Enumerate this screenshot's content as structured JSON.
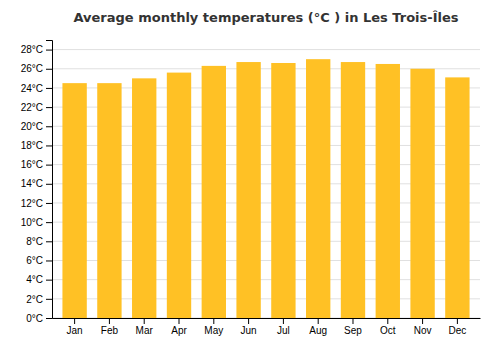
{
  "chart_data": {
    "type": "bar",
    "title": "Average monthly temperatures (°C ) in Les Trois-Îles",
    "categories": [
      "Jan",
      "Feb",
      "Mar",
      "Apr",
      "May",
      "Jun",
      "Jul",
      "Aug",
      "Sep",
      "Oct",
      "Nov",
      "Dec"
    ],
    "values": [
      24.5,
      24.5,
      25.0,
      25.6,
      26.3,
      26.7,
      26.6,
      27.0,
      26.7,
      26.5,
      26.0,
      25.1
    ],
    "color": "#FFC125",
    "ylim": [
      0,
      29
    ],
    "yticks": [
      {
        "value": 0,
        "label": "0°C"
      },
      {
        "value": 2,
        "label": "2°C"
      },
      {
        "value": 4,
        "label": "4°C"
      },
      {
        "value": 6,
        "label": "6°C"
      },
      {
        "value": 8,
        "label": "8°C"
      },
      {
        "value": 10,
        "label": "10°C"
      },
      {
        "value": 12,
        "label": "12°C"
      },
      {
        "value": 14,
        "label": "14°C"
      },
      {
        "value": 16,
        "label": "16°C"
      },
      {
        "value": 18,
        "label": "18°C"
      },
      {
        "value": 20,
        "label": "20°C"
      },
      {
        "value": 22,
        "label": "22°C"
      },
      {
        "value": 24,
        "label": "24°C"
      },
      {
        "value": 26,
        "label": "26°C"
      },
      {
        "value": 28,
        "label": "28°C"
      }
    ],
    "grid": true
  }
}
